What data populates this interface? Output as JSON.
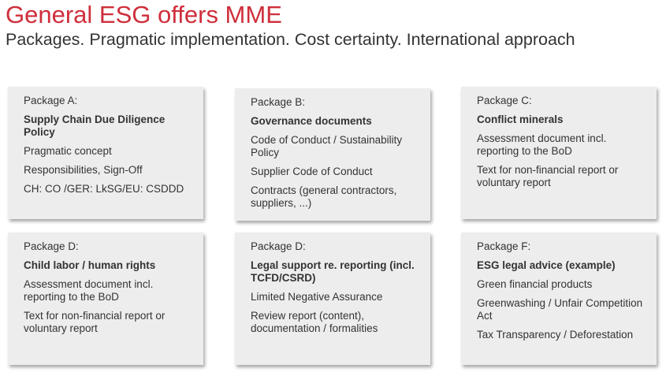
{
  "title": "General ESG offers MME",
  "subtitle": "Packages. Pragmatic implementation. Cost certainty. International approach",
  "colors": {
    "title": "#cf2e3b",
    "card": "#ededed",
    "text": "#333333"
  },
  "packages": [
    {
      "label": "Package A:",
      "heading": "Supply Chain Due Diligence Policy",
      "items": [
        "Pragmatic concept",
        "Responsibilities, Sign-Off",
        "CH: CO /GER: LkSG/EU: CSDDD"
      ]
    },
    {
      "label": "Package B:",
      "heading": "Governance documents",
      "items": [
        "Code of Conduct / Sustainability Policy",
        "Supplier Code of Conduct",
        "Contracts (general contractors, suppliers, ...)"
      ]
    },
    {
      "label": "Package C:",
      "heading": "Conflict minerals",
      "items": [
        "Assessment document incl. reporting to the BoD",
        "Text for non-financial report or voluntary report"
      ]
    },
    {
      "label": "Package D:",
      "heading": "Child labor / human rights",
      "items": [
        "Assessment document incl. reporting to the BoD",
        "Text for non-financial report or voluntary report"
      ]
    },
    {
      "label": "Package D:",
      "heading": "Legal support re. reporting (incl. TCFD/CSRD)",
      "items": [
        "Limited Negative Assurance",
        "Review report (content), documentation / formalities"
      ]
    },
    {
      "label": "Package F:",
      "heading": "ESG legal advice (example)",
      "items": [
        "Green financial products",
        "Greenwashing / Unfair Competition Act",
        "Tax Transparency / Deforestation"
      ]
    }
  ]
}
